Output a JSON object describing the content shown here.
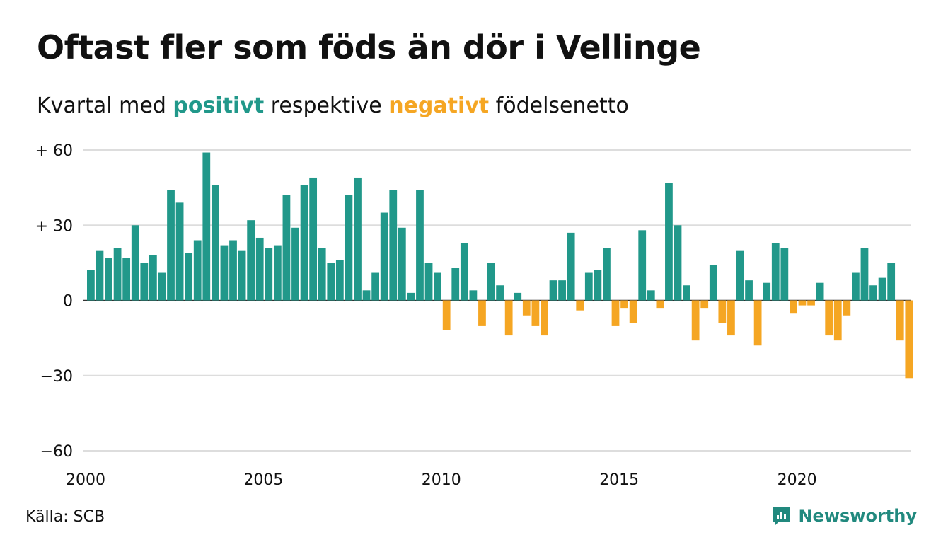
{
  "title": "Oftast fler som föds än dör i Vellinge",
  "subtitle": {
    "part1": "Kvartal med ",
    "positive": "positivt",
    "part2": " respektive ",
    "negative": "negativt",
    "part3": " födelsenetto"
  },
  "source": "Källa: SCB",
  "brand": {
    "name": "Newsworthy",
    "color": "#21897e",
    "icon": "newsworthy-logo-icon"
  },
  "colors": {
    "positive": "#21988a",
    "negative": "#f5a623",
    "grid": "#dddddd",
    "text": "#111111"
  },
  "chart_data": {
    "type": "bar",
    "title": "Oftast fler som föds än dör i Vellinge",
    "subtitle": "Kvartal med positivt respektive negativt födelsenetto",
    "xlabel": "",
    "ylabel": "",
    "x_start": 2000,
    "periods_per_year": 4,
    "xlim": [
      2000,
      2023.25
    ],
    "ylim": [
      -60,
      60
    ],
    "yticks": [
      60,
      30,
      0,
      -30,
      -60
    ],
    "ytick_labels": [
      "+ 60",
      "+ 30",
      "0",
      "−30",
      "−60"
    ],
    "xticks": [
      2000,
      2005,
      2010,
      2015,
      2020
    ],
    "xtick_labels": [
      "2000",
      "2005",
      "2010",
      "2015",
      "2020"
    ],
    "grid": true,
    "legend": "none",
    "values": [
      12,
      20,
      17,
      21,
      17,
      30,
      15,
      18,
      11,
      44,
      39,
      19,
      24,
      59,
      46,
      22,
      24,
      20,
      32,
      25,
      21,
      22,
      42,
      29,
      46,
      49,
      21,
      15,
      16,
      42,
      49,
      4,
      11,
      35,
      44,
      29,
      3,
      44,
      15,
      11,
      -12,
      13,
      23,
      4,
      -10,
      15,
      6,
      -14,
      3,
      -6,
      -10,
      -14,
      8,
      8,
      27,
      -4,
      11,
      12,
      21,
      -10,
      -3,
      -9,
      28,
      4,
      -3,
      47,
      30,
      6,
      -16,
      -3,
      14,
      -9,
      -14,
      20,
      8,
      -18,
      7,
      23,
      21,
      -5,
      -2,
      -2,
      7,
      -14,
      -16,
      -6,
      11,
      21,
      6,
      9,
      15,
      -16,
      -31
    ]
  }
}
